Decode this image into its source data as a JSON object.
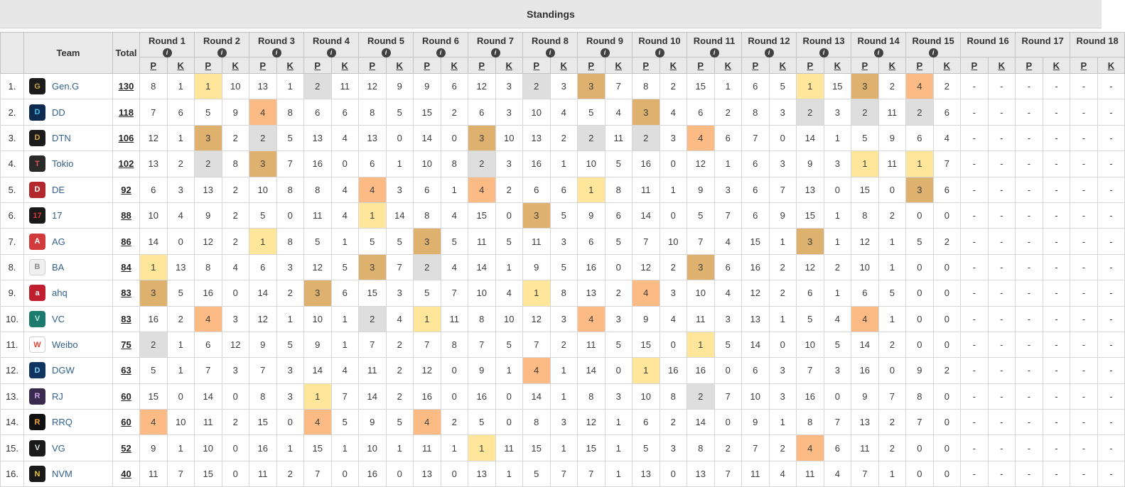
{
  "title": "Standings",
  "header": {
    "rank": "",
    "team": "Team",
    "total": "Total",
    "p": "P",
    "k": "K"
  },
  "placement_colors": {
    "1": "#ffe69b",
    "2": "#dedede",
    "3": "#deb26e",
    "4": "#fcba85"
  },
  "rounds": [
    {
      "label": "Round 1",
      "info": true
    },
    {
      "label": "Round 2",
      "info": true
    },
    {
      "label": "Round 3",
      "info": true
    },
    {
      "label": "Round 4",
      "info": true
    },
    {
      "label": "Round 5",
      "info": true
    },
    {
      "label": "Round 6",
      "info": true
    },
    {
      "label": "Round 7",
      "info": true
    },
    {
      "label": "Round 8",
      "info": true
    },
    {
      "label": "Round 9",
      "info": true
    },
    {
      "label": "Round 10",
      "info": true
    },
    {
      "label": "Round 11",
      "info": true
    },
    {
      "label": "Round 12",
      "info": true
    },
    {
      "label": "Round 13",
      "info": true
    },
    {
      "label": "Round 14",
      "info": true
    },
    {
      "label": "Round 15",
      "info": true
    },
    {
      "label": "Round 16",
      "info": false
    },
    {
      "label": "Round 17",
      "info": false
    },
    {
      "label": "Round 18",
      "info": false
    }
  ],
  "teams": [
    {
      "rank": "1.",
      "name": "Gen.G",
      "total": "130",
      "logo": {
        "bg": "#1b1b1b",
        "fg": "#c9a23d",
        "text": "G"
      },
      "results": [
        [
          "8",
          "1"
        ],
        [
          "1",
          "10"
        ],
        [
          "13",
          "1"
        ],
        [
          "2",
          "11"
        ],
        [
          "12",
          "9"
        ],
        [
          "9",
          "6"
        ],
        [
          "12",
          "3"
        ],
        [
          "2",
          "3"
        ],
        [
          "3",
          "7"
        ],
        [
          "8",
          "2"
        ],
        [
          "15",
          "1"
        ],
        [
          "6",
          "5"
        ],
        [
          "1",
          "15"
        ],
        [
          "3",
          "2"
        ],
        [
          "4",
          "2"
        ],
        [
          "-",
          "-"
        ],
        [
          "-",
          "-"
        ],
        [
          "-",
          "-"
        ]
      ]
    },
    {
      "rank": "2.",
      "name": "DD",
      "total": "118",
      "logo": {
        "bg": "#0e2a4e",
        "fg": "#3fc1e8",
        "text": "D"
      },
      "results": [
        [
          "7",
          "6"
        ],
        [
          "5",
          "9"
        ],
        [
          "4",
          "8"
        ],
        [
          "6",
          "6"
        ],
        [
          "8",
          "5"
        ],
        [
          "15",
          "2"
        ],
        [
          "6",
          "3"
        ],
        [
          "10",
          "4"
        ],
        [
          "5",
          "4"
        ],
        [
          "3",
          "4"
        ],
        [
          "6",
          "2"
        ],
        [
          "8",
          "3"
        ],
        [
          "2",
          "3"
        ],
        [
          "2",
          "11"
        ],
        [
          "2",
          "6"
        ],
        [
          "-",
          "-"
        ],
        [
          "-",
          "-"
        ],
        [
          "-",
          "-"
        ]
      ]
    },
    {
      "rank": "3.",
      "name": "DTN",
      "total": "106",
      "logo": {
        "bg": "#1c1c1c",
        "fg": "#d8a93c",
        "text": "D"
      },
      "results": [
        [
          "12",
          "1"
        ],
        [
          "3",
          "2"
        ],
        [
          "2",
          "5"
        ],
        [
          "13",
          "4"
        ],
        [
          "13",
          "0"
        ],
        [
          "14",
          "0"
        ],
        [
          "3",
          "10"
        ],
        [
          "13",
          "2"
        ],
        [
          "2",
          "11"
        ],
        [
          "2",
          "3"
        ],
        [
          "4",
          "6"
        ],
        [
          "7",
          "0"
        ],
        [
          "14",
          "1"
        ],
        [
          "5",
          "9"
        ],
        [
          "6",
          "4"
        ],
        [
          "-",
          "-"
        ],
        [
          "-",
          "-"
        ],
        [
          "-",
          "-"
        ]
      ]
    },
    {
      "rank": "4.",
      "name": "Tokio",
      "total": "102",
      "logo": {
        "bg": "#2a2a2a",
        "fg": "#e05656",
        "text": "T"
      },
      "results": [
        [
          "13",
          "2"
        ],
        [
          "2",
          "8"
        ],
        [
          "3",
          "7"
        ],
        [
          "16",
          "0"
        ],
        [
          "6",
          "1"
        ],
        [
          "10",
          "8"
        ],
        [
          "2",
          "3"
        ],
        [
          "16",
          "1"
        ],
        [
          "10",
          "5"
        ],
        [
          "16",
          "0"
        ],
        [
          "12",
          "1"
        ],
        [
          "6",
          "3"
        ],
        [
          "9",
          "3"
        ],
        [
          "1",
          "11"
        ],
        [
          "1",
          "7"
        ],
        [
          "-",
          "-"
        ],
        [
          "-",
          "-"
        ],
        [
          "-",
          "-"
        ]
      ]
    },
    {
      "rank": "5.",
      "name": "DE",
      "total": "92",
      "logo": {
        "bg": "#b3282d",
        "fg": "#ffffff",
        "text": "D"
      },
      "results": [
        [
          "6",
          "3"
        ],
        [
          "13",
          "2"
        ],
        [
          "10",
          "8"
        ],
        [
          "8",
          "4"
        ],
        [
          "4",
          "3"
        ],
        [
          "6",
          "1"
        ],
        [
          "4",
          "2"
        ],
        [
          "6",
          "6"
        ],
        [
          "1",
          "8"
        ],
        [
          "11",
          "1"
        ],
        [
          "9",
          "3"
        ],
        [
          "6",
          "7"
        ],
        [
          "13",
          "0"
        ],
        [
          "15",
          "0"
        ],
        [
          "3",
          "6"
        ],
        [
          "-",
          "-"
        ],
        [
          "-",
          "-"
        ],
        [
          "-",
          "-"
        ]
      ]
    },
    {
      "rank": "6.",
      "name": "17",
      "total": "88",
      "logo": {
        "bg": "#1a1a1a",
        "fg": "#e03535",
        "text": "17"
      },
      "results": [
        [
          "10",
          "4"
        ],
        [
          "9",
          "2"
        ],
        [
          "5",
          "0"
        ],
        [
          "11",
          "4"
        ],
        [
          "1",
          "14"
        ],
        [
          "8",
          "4"
        ],
        [
          "15",
          "0"
        ],
        [
          "3",
          "5"
        ],
        [
          "9",
          "6"
        ],
        [
          "14",
          "0"
        ],
        [
          "5",
          "7"
        ],
        [
          "6",
          "9"
        ],
        [
          "15",
          "1"
        ],
        [
          "8",
          "2"
        ],
        [
          "0",
          "0"
        ],
        [
          "-",
          "-"
        ],
        [
          "-",
          "-"
        ],
        [
          "-",
          "-"
        ]
      ]
    },
    {
      "rank": "7.",
      "name": "AG",
      "total": "86",
      "logo": {
        "bg": "#d23b3b",
        "fg": "#ffffff",
        "text": "A"
      },
      "results": [
        [
          "14",
          "0"
        ],
        [
          "12",
          "2"
        ],
        [
          "1",
          "8"
        ],
        [
          "5",
          "1"
        ],
        [
          "5",
          "5"
        ],
        [
          "3",
          "5"
        ],
        [
          "11",
          "5"
        ],
        [
          "11",
          "3"
        ],
        [
          "6",
          "5"
        ],
        [
          "7",
          "10"
        ],
        [
          "7",
          "4"
        ],
        [
          "15",
          "1"
        ],
        [
          "3",
          "1"
        ],
        [
          "12",
          "1"
        ],
        [
          "5",
          "2"
        ],
        [
          "-",
          "-"
        ],
        [
          "-",
          "-"
        ],
        [
          "-",
          "-"
        ]
      ]
    },
    {
      "rank": "8.",
      "name": "BA",
      "total": "84",
      "logo": {
        "bg": "#f0f0f0",
        "fg": "#8a8a8a",
        "text": "B"
      },
      "results": [
        [
          "1",
          "13"
        ],
        [
          "8",
          "4"
        ],
        [
          "6",
          "3"
        ],
        [
          "12",
          "5"
        ],
        [
          "3",
          "7"
        ],
        [
          "2",
          "4"
        ],
        [
          "14",
          "1"
        ],
        [
          "9",
          "5"
        ],
        [
          "16",
          "0"
        ],
        [
          "12",
          "2"
        ],
        [
          "3",
          "6"
        ],
        [
          "16",
          "2"
        ],
        [
          "12",
          "2"
        ],
        [
          "10",
          "1"
        ],
        [
          "0",
          "0"
        ],
        [
          "-",
          "-"
        ],
        [
          "-",
          "-"
        ],
        [
          "-",
          "-"
        ]
      ]
    },
    {
      "rank": "9.",
      "name": "ahq",
      "total": "83",
      "logo": {
        "bg": "#c01f2f",
        "fg": "#ffffff",
        "text": "a"
      },
      "results": [
        [
          "3",
          "5"
        ],
        [
          "16",
          "0"
        ],
        [
          "14",
          "2"
        ],
        [
          "3",
          "6"
        ],
        [
          "15",
          "3"
        ],
        [
          "5",
          "7"
        ],
        [
          "10",
          "4"
        ],
        [
          "1",
          "8"
        ],
        [
          "13",
          "2"
        ],
        [
          "4",
          "3"
        ],
        [
          "10",
          "4"
        ],
        [
          "12",
          "2"
        ],
        [
          "6",
          "1"
        ],
        [
          "6",
          "5"
        ],
        [
          "0",
          "0"
        ],
        [
          "-",
          "-"
        ],
        [
          "-",
          "-"
        ],
        [
          "-",
          "-"
        ]
      ]
    },
    {
      "rank": "10.",
      "name": "VC",
      "total": "83",
      "logo": {
        "bg": "#1d7a6e",
        "fg": "#b8ecd2",
        "text": "V"
      },
      "results": [
        [
          "16",
          "2"
        ],
        [
          "4",
          "3"
        ],
        [
          "12",
          "1"
        ],
        [
          "10",
          "1"
        ],
        [
          "2",
          "4"
        ],
        [
          "1",
          "11"
        ],
        [
          "8",
          "10"
        ],
        [
          "12",
          "3"
        ],
        [
          "4",
          "3"
        ],
        [
          "9",
          "4"
        ],
        [
          "11",
          "3"
        ],
        [
          "13",
          "1"
        ],
        [
          "5",
          "4"
        ],
        [
          "4",
          "1"
        ],
        [
          "0",
          "0"
        ],
        [
          "-",
          "-"
        ],
        [
          "-",
          "-"
        ],
        [
          "-",
          "-"
        ]
      ]
    },
    {
      "rank": "11.",
      "name": "Weibo",
      "total": "75",
      "logo": {
        "bg": "#ffffff",
        "fg": "#e6452f",
        "text": "W"
      },
      "results": [
        [
          "2",
          "1"
        ],
        [
          "6",
          "12"
        ],
        [
          "9",
          "5"
        ],
        [
          "9",
          "1"
        ],
        [
          "7",
          "2"
        ],
        [
          "7",
          "8"
        ],
        [
          "7",
          "5"
        ],
        [
          "7",
          "2"
        ],
        [
          "11",
          "5"
        ],
        [
          "15",
          "0"
        ],
        [
          "1",
          "5"
        ],
        [
          "14",
          "0"
        ],
        [
          "10",
          "5"
        ],
        [
          "14",
          "2"
        ],
        [
          "0",
          "0"
        ],
        [
          "-",
          "-"
        ],
        [
          "-",
          "-"
        ],
        [
          "-",
          "-"
        ]
      ]
    },
    {
      "rank": "12.",
      "name": "DGW",
      "total": "63",
      "logo": {
        "bg": "#12355f",
        "fg": "#7fd0f0",
        "text": "D"
      },
      "results": [
        [
          "5",
          "1"
        ],
        [
          "7",
          "3"
        ],
        [
          "7",
          "3"
        ],
        [
          "14",
          "4"
        ],
        [
          "11",
          "2"
        ],
        [
          "12",
          "0"
        ],
        [
          "9",
          "1"
        ],
        [
          "4",
          "1"
        ],
        [
          "14",
          "0"
        ],
        [
          "1",
          "16"
        ],
        [
          "16",
          "0"
        ],
        [
          "6",
          "3"
        ],
        [
          "7",
          "3"
        ],
        [
          "16",
          "0"
        ],
        [
          "9",
          "2"
        ],
        [
          "-",
          "-"
        ],
        [
          "-",
          "-"
        ],
        [
          "-",
          "-"
        ]
      ]
    },
    {
      "rank": "13.",
      "name": "RJ",
      "total": "60",
      "logo": {
        "bg": "#3a2a4d",
        "fg": "#cfa3e8",
        "text": "R"
      },
      "results": [
        [
          "15",
          "0"
        ],
        [
          "14",
          "0"
        ],
        [
          "8",
          "3"
        ],
        [
          "1",
          "7"
        ],
        [
          "14",
          "2"
        ],
        [
          "16",
          "0"
        ],
        [
          "16",
          "0"
        ],
        [
          "14",
          "1"
        ],
        [
          "8",
          "3"
        ],
        [
          "10",
          "8"
        ],
        [
          "2",
          "7"
        ],
        [
          "10",
          "3"
        ],
        [
          "16",
          "0"
        ],
        [
          "9",
          "7"
        ],
        [
          "8",
          "0"
        ],
        [
          "-",
          "-"
        ],
        [
          "-",
          "-"
        ],
        [
          "-",
          "-"
        ]
      ]
    },
    {
      "rank": "14.",
      "name": "RRQ",
      "total": "60",
      "logo": {
        "bg": "#111111",
        "fg": "#f5a623",
        "text": "R"
      },
      "results": [
        [
          "4",
          "10"
        ],
        [
          "11",
          "2"
        ],
        [
          "15",
          "0"
        ],
        [
          "4",
          "5"
        ],
        [
          "9",
          "5"
        ],
        [
          "4",
          "2"
        ],
        [
          "5",
          "0"
        ],
        [
          "8",
          "3"
        ],
        [
          "12",
          "1"
        ],
        [
          "6",
          "2"
        ],
        [
          "14",
          "0"
        ],
        [
          "9",
          "1"
        ],
        [
          "8",
          "7"
        ],
        [
          "13",
          "2"
        ],
        [
          "7",
          "0"
        ],
        [
          "-",
          "-"
        ],
        [
          "-",
          "-"
        ],
        [
          "-",
          "-"
        ]
      ]
    },
    {
      "rank": "15.",
      "name": "VG",
      "total": "52",
      "logo": {
        "bg": "#1a1a1a",
        "fg": "#d9e8df",
        "text": "V"
      },
      "results": [
        [
          "9",
          "1"
        ],
        [
          "10",
          "0"
        ],
        [
          "16",
          "1"
        ],
        [
          "15",
          "1"
        ],
        [
          "10",
          "1"
        ],
        [
          "11",
          "1"
        ],
        [
          "1",
          "11"
        ],
        [
          "15",
          "1"
        ],
        [
          "15",
          "1"
        ],
        [
          "5",
          "3"
        ],
        [
          "8",
          "2"
        ],
        [
          "7",
          "2"
        ],
        [
          "4",
          "6"
        ],
        [
          "11",
          "2"
        ],
        [
          "0",
          "0"
        ],
        [
          "-",
          "-"
        ],
        [
          "-",
          "-"
        ],
        [
          "-",
          "-"
        ]
      ]
    },
    {
      "rank": "16.",
      "name": "NVM",
      "total": "40",
      "logo": {
        "bg": "#1a1a1a",
        "fg": "#e8c53a",
        "text": "N"
      },
      "results": [
        [
          "11",
          "7"
        ],
        [
          "15",
          "0"
        ],
        [
          "11",
          "2"
        ],
        [
          "7",
          "0"
        ],
        [
          "16",
          "0"
        ],
        [
          "13",
          "0"
        ],
        [
          "13",
          "1"
        ],
        [
          "5",
          "7"
        ],
        [
          "7",
          "1"
        ],
        [
          "13",
          "0"
        ],
        [
          "13",
          "7"
        ],
        [
          "11",
          "4"
        ],
        [
          "11",
          "4"
        ],
        [
          "7",
          "1"
        ],
        [
          "0",
          "0"
        ],
        [
          "-",
          "-"
        ],
        [
          "-",
          "-"
        ],
        [
          "-",
          "-"
        ]
      ]
    }
  ]
}
